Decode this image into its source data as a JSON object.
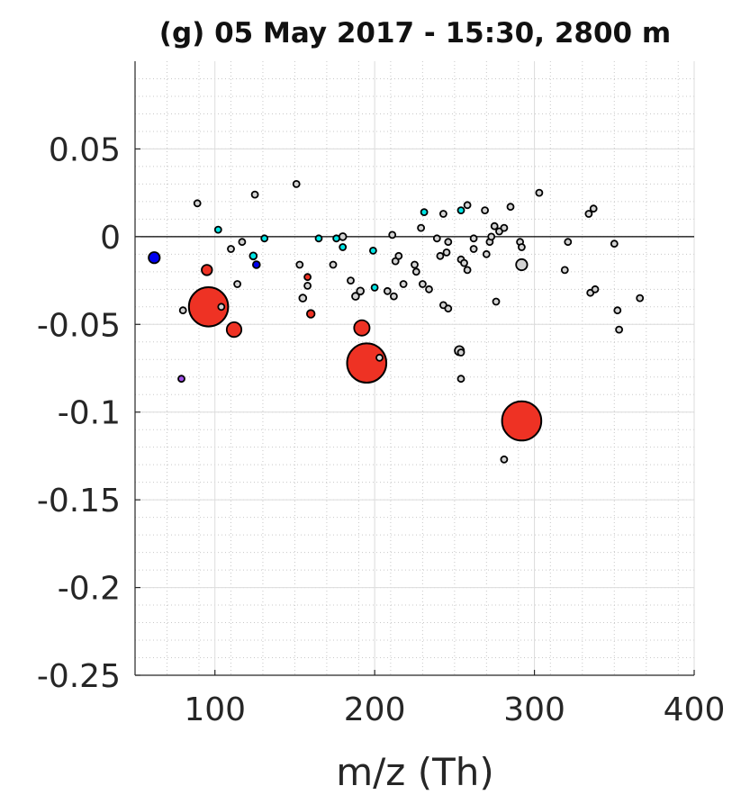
{
  "chart_data": {
    "type": "scatter",
    "title": "(g) 05 May 2017 - 15:30, 2800 m",
    "xlabel": "m/z (Th)",
    "ylabel": "",
    "xlim": [
      50,
      400
    ],
    "ylim": [
      -0.25,
      0.1
    ],
    "xticks": [
      100,
      200,
      300,
      400
    ],
    "xtick_labels": [
      "100",
      "200",
      "300",
      "400"
    ],
    "yticks": [
      -0.25,
      -0.2,
      -0.15,
      -0.1,
      -0.05,
      0,
      0.05
    ],
    "ytick_labels": [
      "-0.25",
      "-0.2",
      "-0.15",
      "-0.1",
      "-0.05",
      "0",
      "0.05"
    ],
    "grid": true,
    "minor_grid": true,
    "zero_line": true,
    "colors": {
      "red": "#ee3224",
      "gray": "#d3d3d3",
      "cyan": "#00e5e5",
      "blue": "#0000ee",
      "purple": "#a050e8",
      "edge": "#000000"
    },
    "series": [
      {
        "color": "red",
        "points": [
          {
            "x": 96,
            "y": -0.04,
            "s": 0.56
          },
          {
            "x": 195,
            "y": -0.072,
            "s": 0.56
          },
          {
            "x": 292,
            "y": -0.105,
            "s": 0.56
          },
          {
            "x": 192,
            "y": -0.052,
            "s": 0.22
          },
          {
            "x": 112,
            "y": -0.053,
            "s": 0.21
          },
          {
            "x": 95,
            "y": -0.019,
            "s": 0.15
          },
          {
            "x": 160,
            "y": -0.044,
            "s": 0.11
          },
          {
            "x": 158,
            "y": -0.023,
            "s": 0.07
          }
        ]
      },
      {
        "color": "gray",
        "points": [
          {
            "x": 292,
            "y": -0.016,
            "s": 0.16
          },
          {
            "x": 253,
            "y": -0.065,
            "s": 0.13
          },
          {
            "x": 155,
            "y": -0.035,
            "s": 0.1
          },
          {
            "x": 188,
            "y": -0.034,
            "s": 0.1
          },
          {
            "x": 191,
            "y": -0.031,
            "s": 0.1
          },
          {
            "x": 180,
            "y": 0.0,
            "s": 0.1
          },
          {
            "x": 80,
            "y": -0.042,
            "s": 0.08
          },
          {
            "x": 104,
            "y": -0.04,
            "s": 0.08
          },
          {
            "x": 114,
            "y": -0.027,
            "s": 0.08
          },
          {
            "x": 110,
            "y": -0.007,
            "s": 0.08
          },
          {
            "x": 117,
            "y": -0.003,
            "s": 0.07
          },
          {
            "x": 89,
            "y": 0.019,
            "s": 0.07
          },
          {
            "x": 125,
            "y": 0.024,
            "s": 0.07
          },
          {
            "x": 151,
            "y": 0.03,
            "s": 0.06
          },
          {
            "x": 153,
            "y": -0.016,
            "s": 0.07
          },
          {
            "x": 158,
            "y": -0.028,
            "s": 0.07
          },
          {
            "x": 174,
            "y": -0.016,
            "s": 0.07
          },
          {
            "x": 185,
            "y": -0.025,
            "s": 0.07
          },
          {
            "x": 203,
            "y": -0.069,
            "s": 0.07
          },
          {
            "x": 211,
            "y": 0.001,
            "s": 0.07
          },
          {
            "x": 213,
            "y": -0.014,
            "s": 0.07
          },
          {
            "x": 215,
            "y": -0.011,
            "s": 0.07
          },
          {
            "x": 212,
            "y": -0.034,
            "s": 0.07
          },
          {
            "x": 208,
            "y": -0.031,
            "s": 0.07
          },
          {
            "x": 218,
            "y": -0.027,
            "s": 0.07
          },
          {
            "x": 225,
            "y": -0.016,
            "s": 0.07
          },
          {
            "x": 226,
            "y": -0.02,
            "s": 0.07
          },
          {
            "x": 230,
            "y": -0.027,
            "s": 0.07
          },
          {
            "x": 234,
            "y": -0.03,
            "s": 0.07
          },
          {
            "x": 229,
            "y": 0.005,
            "s": 0.07
          },
          {
            "x": 239,
            "y": -0.001,
            "s": 0.07
          },
          {
            "x": 243,
            "y": 0.013,
            "s": 0.07
          },
          {
            "x": 246,
            "y": -0.003,
            "s": 0.07
          },
          {
            "x": 245,
            "y": -0.009,
            "s": 0.07
          },
          {
            "x": 241,
            "y": -0.011,
            "s": 0.07
          },
          {
            "x": 243,
            "y": -0.039,
            "s": 0.07
          },
          {
            "x": 246,
            "y": -0.041,
            "s": 0.07
          },
          {
            "x": 254,
            "y": -0.013,
            "s": 0.07
          },
          {
            "x": 256,
            "y": -0.015,
            "s": 0.07
          },
          {
            "x": 258,
            "y": -0.019,
            "s": 0.07
          },
          {
            "x": 258,
            "y": 0.018,
            "s": 0.07
          },
          {
            "x": 262,
            "y": -0.001,
            "s": 0.07
          },
          {
            "x": 262,
            "y": -0.007,
            "s": 0.07
          },
          {
            "x": 254,
            "y": -0.066,
            "s": 0.07
          },
          {
            "x": 254,
            "y": -0.081,
            "s": 0.07
          },
          {
            "x": 269,
            "y": 0.015,
            "s": 0.07
          },
          {
            "x": 270,
            "y": -0.01,
            "s": 0.07
          },
          {
            "x": 272,
            "y": -0.003,
            "s": 0.07
          },
          {
            "x": 273,
            "y": 0.0,
            "s": 0.07
          },
          {
            "x": 275,
            "y": 0.006,
            "s": 0.07
          },
          {
            "x": 278,
            "y": 0.003,
            "s": 0.07
          },
          {
            "x": 276,
            "y": -0.037,
            "s": 0.07
          },
          {
            "x": 281,
            "y": 0.005,
            "s": 0.07
          },
          {
            "x": 285,
            "y": 0.017,
            "s": 0.07
          },
          {
            "x": 291,
            "y": -0.003,
            "s": 0.07
          },
          {
            "x": 292,
            "y": -0.006,
            "s": 0.07
          },
          {
            "x": 281,
            "y": -0.127,
            "s": 0.07
          },
          {
            "x": 303,
            "y": 0.025,
            "s": 0.06
          },
          {
            "x": 319,
            "y": -0.019,
            "s": 0.06
          },
          {
            "x": 321,
            "y": -0.003,
            "s": 0.06
          },
          {
            "x": 334,
            "y": 0.013,
            "s": 0.06
          },
          {
            "x": 337,
            "y": 0.016,
            "s": 0.06
          },
          {
            "x": 335,
            "y": -0.032,
            "s": 0.06
          },
          {
            "x": 338,
            "y": -0.03,
            "s": 0.06
          },
          {
            "x": 350,
            "y": -0.004,
            "s": 0.06
          },
          {
            "x": 352,
            "y": -0.042,
            "s": 0.06
          },
          {
            "x": 353,
            "y": -0.053,
            "s": 0.07
          },
          {
            "x": 366,
            "y": -0.035,
            "s": 0.06
          }
        ]
      },
      {
        "color": "cyan",
        "points": [
          {
            "x": 124,
            "y": -0.011,
            "s": 0.1
          },
          {
            "x": 102,
            "y": 0.004,
            "s": 0.06
          },
          {
            "x": 131,
            "y": -0.001,
            "s": 0.05
          },
          {
            "x": 165,
            "y": -0.001,
            "s": 0.07
          },
          {
            "x": 176,
            "y": -0.001,
            "s": 0.07
          },
          {
            "x": 180,
            "y": -0.006,
            "s": 0.06
          },
          {
            "x": 199,
            "y": -0.008,
            "s": 0.07
          },
          {
            "x": 200,
            "y": -0.029,
            "s": 0.07
          },
          {
            "x": 231,
            "y": 0.014,
            "s": 0.06
          },
          {
            "x": 254,
            "y": 0.015,
            "s": 0.06
          }
        ]
      },
      {
        "color": "blue",
        "points": [
          {
            "x": 62,
            "y": -0.012,
            "s": 0.16
          },
          {
            "x": 126,
            "y": -0.016,
            "s": 0.1
          }
        ]
      },
      {
        "color": "purple",
        "points": [
          {
            "x": 79,
            "y": -0.081,
            "s": 0.05
          }
        ]
      }
    ]
  }
}
